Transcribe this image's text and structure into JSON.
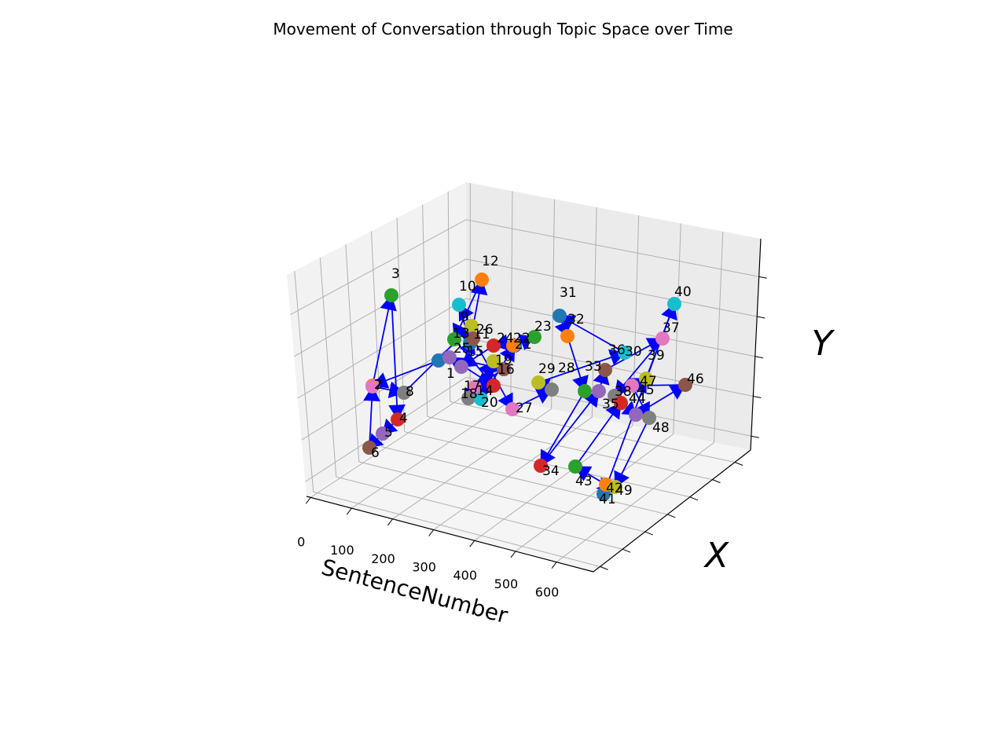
{
  "chart_data": {
    "type": "scatter3d",
    "title": "Movement of Conversation through Topic Space over Time",
    "xlabel": "SentenceNumber",
    "ylabel": "X",
    "zlabel": "Y",
    "x_ticks": [
      "0",
      "100",
      "200",
      "300",
      "400",
      "500",
      "600"
    ],
    "points": [
      {
        "label": "1",
        "color": "#1f77b4"
      },
      {
        "label": "2",
        "color": "#ff7f0e"
      },
      {
        "label": "3",
        "color": "#2ca02c"
      },
      {
        "label": "4",
        "color": "#d62728"
      },
      {
        "label": "5",
        "color": "#9467bd"
      },
      {
        "label": "6",
        "color": "#8c564b"
      },
      {
        "label": "7",
        "color": "#e377c2"
      },
      {
        "label": "8",
        "color": "#7f7f7f"
      },
      {
        "label": "9",
        "color": "#bcbd22"
      },
      {
        "label": "10",
        "color": "#17becf"
      },
      {
        "label": "11",
        "color": "#1f77b4"
      },
      {
        "label": "12",
        "color": "#ff7f0e"
      },
      {
        "label": "13",
        "color": "#2ca02c"
      },
      {
        "label": "14",
        "color": "#d62728"
      },
      {
        "label": "15",
        "color": "#9467bd"
      },
      {
        "label": "16",
        "color": "#8c564b"
      },
      {
        "label": "17",
        "color": "#e377c2"
      },
      {
        "label": "18",
        "color": "#7f7f7f"
      },
      {
        "label": "19",
        "color": "#bcbd22"
      },
      {
        "label": "20",
        "color": "#17becf"
      },
      {
        "label": "21",
        "color": "#1f77b4"
      },
      {
        "label": "22",
        "color": "#ff7f0e"
      },
      {
        "label": "23",
        "color": "#2ca02c"
      },
      {
        "label": "24",
        "color": "#d62728"
      },
      {
        "label": "25",
        "color": "#9467bd"
      },
      {
        "label": "26",
        "color": "#8c564b"
      },
      {
        "label": "27",
        "color": "#e377c2"
      },
      {
        "label": "28",
        "color": "#7f7f7f"
      },
      {
        "label": "29",
        "color": "#bcbd22"
      },
      {
        "label": "30",
        "color": "#17becf"
      },
      {
        "label": "31",
        "color": "#1f77b4"
      },
      {
        "label": "32",
        "color": "#ff7f0e"
      },
      {
        "label": "33",
        "color": "#2ca02c"
      },
      {
        "label": "34",
        "color": "#d62728"
      },
      {
        "label": "35",
        "color": "#9467bd"
      },
      {
        "label": "36",
        "color": "#8c564b"
      },
      {
        "label": "37",
        "color": "#e377c2"
      },
      {
        "label": "38",
        "color": "#7f7f7f"
      },
      {
        "label": "39",
        "color": "#bcbd22"
      },
      {
        "label": "40",
        "color": "#17becf"
      },
      {
        "label": "41",
        "color": "#1f77b4"
      },
      {
        "label": "42",
        "color": "#ff7f0e"
      },
      {
        "label": "43",
        "color": "#2ca02c"
      },
      {
        "label": "44",
        "color": "#d62728"
      },
      {
        "label": "45",
        "color": "#9467bd"
      },
      {
        "label": "46",
        "color": "#8c564b"
      },
      {
        "label": "47",
        "color": "#e377c2"
      },
      {
        "label": "48",
        "color": "#7f7f7f"
      },
      {
        "label": "49",
        "color": "#bcbd22"
      }
    ],
    "arrow_color": "#0000ff"
  }
}
